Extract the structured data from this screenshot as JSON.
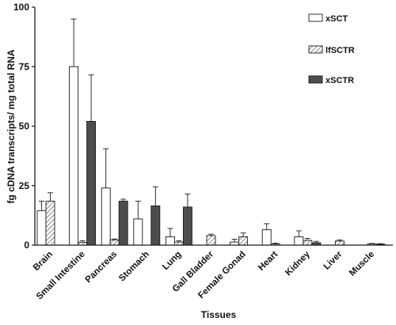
{
  "chart_data": {
    "type": "bar",
    "title": "",
    "xlabel": "Tissues",
    "ylabel": "fg cDNA transcripts/ mg total RNA",
    "ylim": [
      0,
      100
    ],
    "yticks": [
      0,
      25,
      50,
      75,
      100
    ],
    "grid": false,
    "legend_position": "top-right",
    "categories": [
      "Brain",
      "Small Intestine",
      "Pancreas",
      "Stomach",
      "Lung",
      "Gall Bladder",
      "Female Gonad",
      "Heart",
      "Kidney",
      "Liver",
      "Muscle"
    ],
    "series": [
      {
        "name": "xSCT",
        "pattern": "open",
        "values": [
          14.5,
          75,
          24,
          11,
          3.5,
          0,
          1.3,
          6.5,
          3.5,
          0,
          0
        ],
        "errors": [
          4,
          20,
          16.5,
          7.5,
          3.5,
          0,
          1.2,
          2.5,
          2.5,
          0,
          0
        ]
      },
      {
        "name": "lfSCTR",
        "pattern": "hatched",
        "values": [
          18.5,
          1.2,
          2.2,
          0,
          1.3,
          4,
          3.5,
          0.5,
          2,
          1.7,
          0.5
        ],
        "errors": [
          3.5,
          0.6,
          0.4,
          0,
          0.5,
          0.6,
          1.6,
          0.3,
          0.8,
          0.5,
          0.2
        ]
      },
      {
        "name": "xSCTR",
        "pattern": "filled",
        "values": [
          0,
          52,
          18.5,
          16.5,
          16,
          0,
          0,
          0,
          1,
          0,
          0.4
        ],
        "errors": [
          0,
          19.5,
          0.8,
          8,
          5.5,
          0,
          0,
          0,
          0.6,
          0,
          0.2
        ]
      }
    ],
    "colors": {
      "xSCT": "#ffffff",
      "lfSCTR": "#d9d9d9",
      "xSCTR": "#4d4d4d",
      "stroke": "#1a1a1a"
    }
  }
}
